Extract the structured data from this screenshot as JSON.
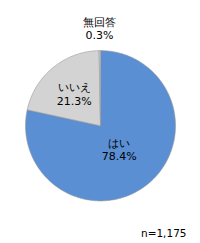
{
  "chart_data": {
    "type": "pie",
    "categories": [
      "はい",
      "いいえ",
      "無回答"
    ],
    "values": [
      78.4,
      21.3,
      0.3
    ],
    "value_labels": [
      "78.4%",
      "21.3%",
      "0.3%"
    ],
    "colors": [
      "#5b8fd4",
      "#d3d3d3",
      "#d3d3d3"
    ],
    "data_labels": true,
    "annotations": [
      "n=1,175"
    ]
  }
}
